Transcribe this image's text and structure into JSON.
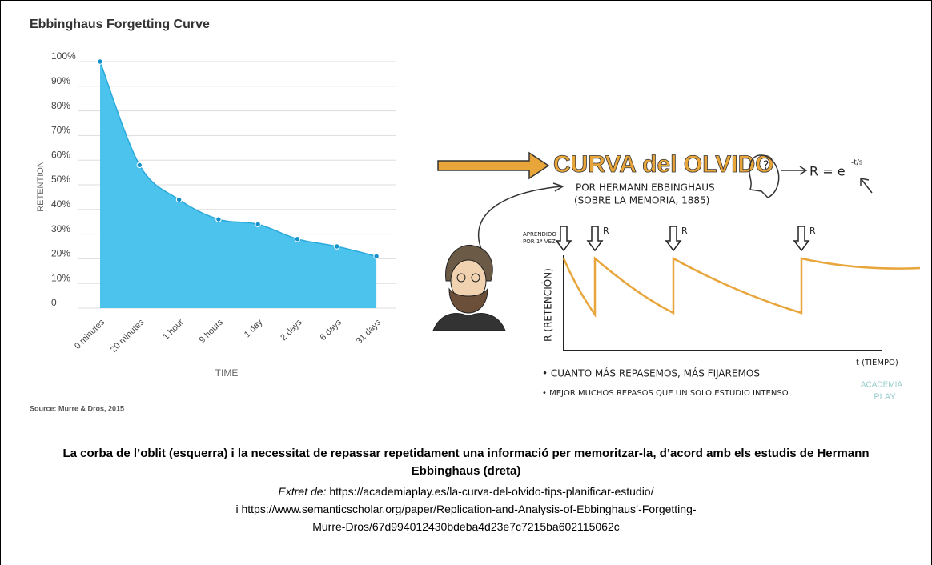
{
  "chart_data": {
    "type": "area",
    "title": "Ebbinghaus Forgetting Curve",
    "x_label": "TIME",
    "y_label": "RETENTION",
    "source": "Source: Murre & Dros, 2015",
    "categories": [
      "0 minutes",
      "20 minutes",
      "1 hour",
      "9 hours",
      "1 day",
      "2 days",
      "6 days",
      "31 days"
    ],
    "values": [
      100,
      58,
      44,
      36,
      34,
      28,
      25,
      21
    ],
    "color": "#4cc3ec",
    "line_color": "#2aa9dc",
    "point_color": "#1590c8",
    "ylim": [
      0,
      100
    ],
    "yticks": [
      0,
      {
        "value": 10,
        "label": "10%"
      },
      {
        "value": 20,
        "label": "20%"
      },
      {
        "value": 30,
        "label": "30%"
      },
      {
        "value": 40,
        "label": "40%"
      },
      {
        "value": 50,
        "label": "50%"
      },
      {
        "value": 60,
        "label": "60%"
      },
      {
        "value": 70,
        "label": "70%"
      },
      {
        "value": 80,
        "label": "80%"
      },
      {
        "value": 90,
        "label": "90%"
      },
      {
        "value": 100,
        "label": "100%"
      }
    ],
    "grid": true
  },
  "illustration": {
    "title": "CURVA del OLVIDO",
    "author": "POR HERMANN EBBINGHAUS",
    "work": "(SOBRE LA MEMORIA, 1885)",
    "formula_base": "R = e",
    "formula_exponent": "-t/s",
    "first_learning": [
      "APRENDIDO",
      "POR 1ª VEZ"
    ],
    "review_mark": "R",
    "y_axis": "R (RETENCIÓN)",
    "x_axis": "t (TIEMPO)",
    "notes": [
      "• CUANTO MÁS REPASEMOS, MÁS FIJAREMOS",
      "• MEJOR MUCHOS REPASOS QUE UN SOLO ESTUDIO INTENSO"
    ],
    "logo": [
      "ACADEMIA",
      "PLAY"
    ]
  },
  "caption": {
    "text": "La corba de l’oblit (esquerra) i la necessitat de repassar repetidament una informació per memoritzar-la, d’acord amb els estudis de Hermann Ebbinghaus (dreta)",
    "source_label": "Extret de:",
    "source_url": "https://academiaplay.es/la-curva-del-olvido-tips-planificar-estudio/",
    "second_source": "i https://www.semanticscholar.org/paper/Replication-and-Analysis-of-Ebbinghaus’-Forgetting-Murre-Dros/67d994012430bdeba4d23e7c7215ba602115062c"
  }
}
